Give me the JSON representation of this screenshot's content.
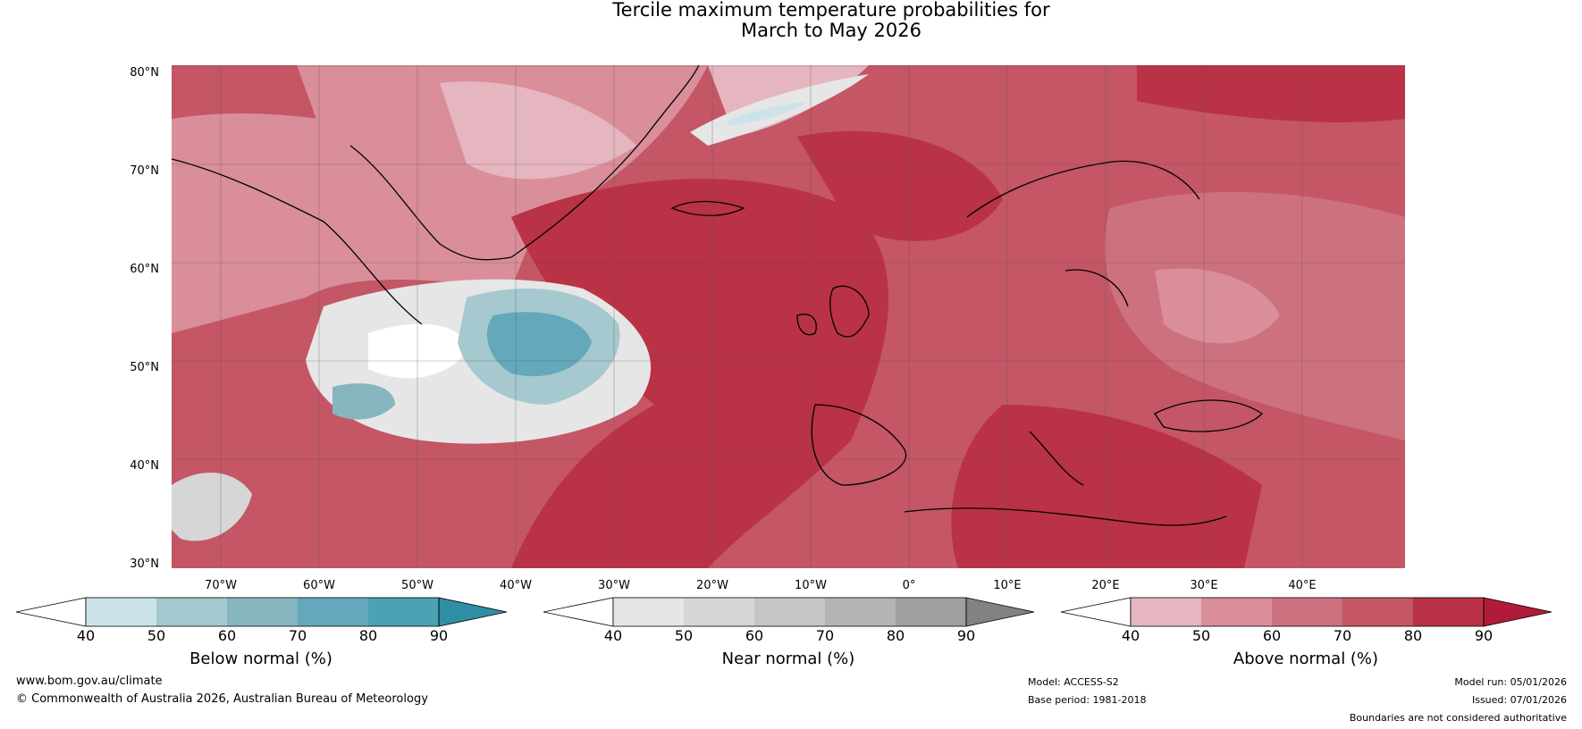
{
  "title": {
    "line1": "Tercile maximum temperature probabilities for",
    "line2": "March to May 2026"
  },
  "map": {
    "latitude_labels": [
      "80°N",
      "70°N",
      "60°N",
      "50°N",
      "40°N",
      "30°N"
    ],
    "longitude_labels": [
      "70°W",
      "60°W",
      "50°W",
      "40°W",
      "30°W",
      "20°W",
      "10°W",
      "0°",
      "10°E",
      "20°E",
      "30°E",
      "40°E"
    ],
    "extent": {
      "lon_min": -76,
      "lon_max": 49,
      "lat_min": 30,
      "lat_max": 81
    }
  },
  "colorbars": [
    {
      "name": "below",
      "label": "Below normal (%)",
      "ticks": [
        "40",
        "50",
        "60",
        "70",
        "80",
        "90"
      ],
      "colors": [
        "#ffffff",
        "#cce3ea",
        "#a6c8cf",
        "#86b5c0",
        "#63a8bb",
        "#4aa2b2",
        "#2e8fa4"
      ]
    },
    {
      "name": "near",
      "label": "Near normal (%)",
      "ticks": [
        "40",
        "50",
        "60",
        "70",
        "80",
        "90"
      ],
      "colors": [
        "#ffffff",
        "#e6e6e6",
        "#d6d6d6",
        "#c6c6c6",
        "#b4b4b4",
        "#a0a0a0",
        "#828282"
      ]
    },
    {
      "name": "above",
      "label": "Above normal (%)",
      "ticks": [
        "40",
        "50",
        "60",
        "70",
        "80",
        "90"
      ],
      "colors": [
        "#ffffff",
        "#e5b6bf",
        "#d98e9a",
        "#cd717e",
        "#c45665",
        "#b93245",
        "#b01c38"
      ]
    }
  ],
  "footer": {
    "website": "www.bom.gov.au/climate",
    "copyright": "© Commonwealth of Australia 2026, Australian Bureau of Meteorology",
    "model": "Model: ACCESS-S2",
    "base_period": "Base period: 1981-2018",
    "model_run": "Model run: 05/01/2026",
    "issued": "Issued: 07/01/2026",
    "disclaimer": "Boundaries are not considered authoritative"
  }
}
